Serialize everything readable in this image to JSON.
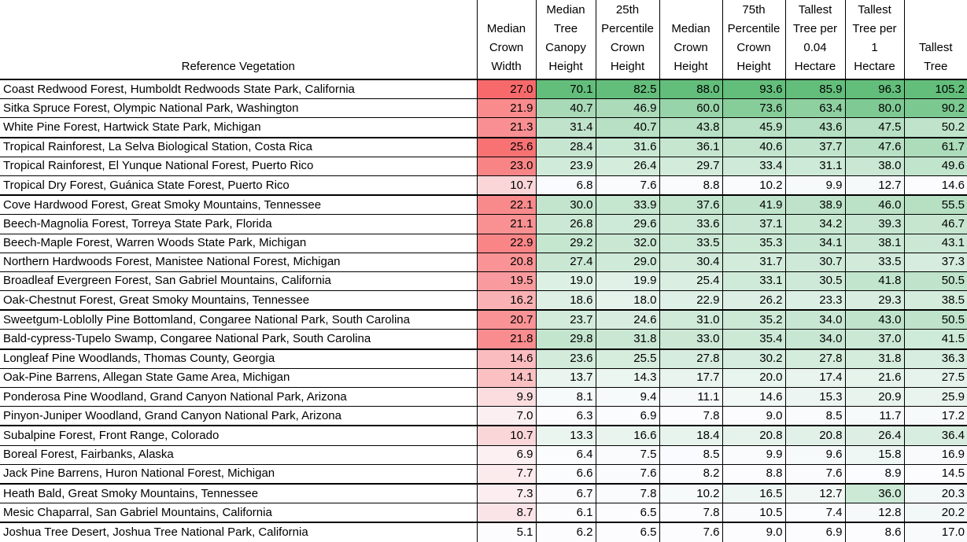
{
  "headers": [
    [
      "Reference Vegetation"
    ],
    [
      "Median",
      "Crown",
      "Width"
    ],
    [
      "Median",
      "Tree",
      "Canopy",
      "Height"
    ],
    [
      "25th",
      "Percentile",
      "Crown",
      "Height"
    ],
    [
      "Median",
      "Crown",
      "Height"
    ],
    [
      "75th",
      "Percentile",
      "Crown",
      "Height"
    ],
    [
      "Tallest",
      "Tree per",
      "0.04",
      "Hectare"
    ],
    [
      "Tallest",
      "Tree per",
      "1",
      "Hectare"
    ],
    [
      "Tallest",
      "Tree"
    ]
  ],
  "colors": {
    "red_scale_max": "#f8696b",
    "green_scale_max": "#63be7b",
    "scale_min": "#fcfcff"
  },
  "rows": [
    {
      "name": "Coast Redwood Forest, Humboldt Redwoods State Park, California",
      "values": [
        "27.0",
        "70.1",
        "82.5",
        "88.0",
        "93.6",
        "85.9",
        "96.3",
        "105.2"
      ]
    },
    {
      "name": "Sitka Spruce Forest, Olympic National Park, Washington",
      "values": [
        "21.9",
        "40.7",
        "46.9",
        "60.0",
        "73.6",
        "63.4",
        "80.0",
        "90.2"
      ]
    },
    {
      "name": "White Pine Forest, Hartwick State Park, Michigan",
      "values": [
        "21.3",
        "31.4",
        "40.7",
        "43.8",
        "45.9",
        "43.6",
        "47.5",
        "50.2"
      ]
    },
    {
      "name": "Tropical Rainforest, La Selva Biological Station, Costa Rica",
      "values": [
        "25.6",
        "28.4",
        "31.6",
        "36.1",
        "40.6",
        "37.7",
        "47.6",
        "61.7"
      ],
      "group_top": true
    },
    {
      "name": "Tropical Rainforest, El Yunque National Forest, Puerto Rico",
      "values": [
        "23.0",
        "23.9",
        "26.4",
        "29.7",
        "33.4",
        "31.1",
        "38.0",
        "49.6"
      ]
    },
    {
      "name": "Tropical Dry Forest, Guánica State Forest, Puerto Rico",
      "values": [
        "10.7",
        "6.8",
        "7.6",
        "8.8",
        "10.2",
        "9.9",
        "12.7",
        "14.6"
      ]
    },
    {
      "name": "Cove Hardwood Forest, Great Smoky Mountains, Tennessee",
      "values": [
        "22.1",
        "30.0",
        "33.9",
        "37.6",
        "41.9",
        "38.9",
        "46.0",
        "55.5"
      ],
      "group_top": true
    },
    {
      "name": "Beech-Magnolia Forest, Torreya State Park, Florida",
      "values": [
        "21.1",
        "26.8",
        "29.6",
        "33.6",
        "37.1",
        "34.2",
        "39.3",
        "46.7"
      ]
    },
    {
      "name": "Beech-Maple Forest, Warren Woods State Park, Michigan",
      "values": [
        "22.9",
        "29.2",
        "32.0",
        "33.5",
        "35.3",
        "34.1",
        "38.1",
        "43.1"
      ]
    },
    {
      "name": "Northern Hardwoods Forest, Manistee National Forest, Michigan",
      "values": [
        "20.8",
        "27.4",
        "29.0",
        "30.4",
        "31.7",
        "30.7",
        "33.5",
        "37.3"
      ]
    },
    {
      "name": "Broadleaf Evergreen Forest, San Gabriel Mountains, California",
      "values": [
        "19.5",
        "19.0",
        "19.9",
        "25.4",
        "33.1",
        "30.5",
        "41.8",
        "50.5"
      ]
    },
    {
      "name": "Oak-Chestnut Forest, Great Smoky Mountains, Tennessee",
      "values": [
        "16.2",
        "18.6",
        "18.0",
        "22.9",
        "26.2",
        "23.3",
        "29.3",
        "38.5"
      ]
    },
    {
      "name": "Sweetgum-Loblolly Pine Bottomland, Congaree National Park, South Carolina",
      "values": [
        "20.7",
        "23.7",
        "24.6",
        "31.0",
        "35.2",
        "34.0",
        "43.0",
        "50.5"
      ],
      "group_top": true
    },
    {
      "name": "Bald-cypress-Tupelo Swamp, Congaree National Park, South Carolina",
      "values": [
        "21.8",
        "29.8",
        "31.8",
        "33.0",
        "35.4",
        "34.0",
        "37.0",
        "41.5"
      ]
    },
    {
      "name": "Longleaf Pine Woodlands, Thomas County, Georgia",
      "values": [
        "14.6",
        "23.6",
        "25.5",
        "27.8",
        "30.2",
        "27.8",
        "31.8",
        "36.3"
      ],
      "group_top": true
    },
    {
      "name": "Oak-Pine Barrens, Allegan State Game Area, Michigan",
      "values": [
        "14.1",
        "13.7",
        "14.3",
        "17.7",
        "20.0",
        "17.4",
        "21.6",
        "27.5"
      ]
    },
    {
      "name": "Ponderosa Pine Woodland, Grand Canyon National Park, Arizona",
      "values": [
        "9.9",
        "8.1",
        "9.4",
        "11.1",
        "14.6",
        "15.3",
        "20.9",
        "25.9"
      ]
    },
    {
      "name": "Pinyon-Juniper Woodland, Grand Canyon National Park, Arizona",
      "values": [
        "7.0",
        "6.3",
        "6.9",
        "7.8",
        "9.0",
        "8.5",
        "11.7",
        "17.2"
      ]
    },
    {
      "name": "Subalpine Forest, Front Range, Colorado",
      "values": [
        "10.7",
        "13.3",
        "16.6",
        "18.4",
        "20.8",
        "20.8",
        "26.4",
        "36.4"
      ],
      "group_top": true
    },
    {
      "name": "Boreal Forest, Fairbanks, Alaska",
      "values": [
        "6.9",
        "6.4",
        "7.5",
        "8.5",
        "9.9",
        "9.6",
        "15.8",
        "16.9"
      ]
    },
    {
      "name": "Jack Pine Barrens, Huron National Forest, Michigan",
      "values": [
        "7.7",
        "6.6",
        "7.6",
        "8.2",
        "8.8",
        "7.6",
        "8.9",
        "14.5"
      ]
    },
    {
      "name": "Heath Bald, Great Smoky Mountains, Tennessee",
      "values": [
        "7.3",
        "6.7",
        "7.8",
        "10.2",
        "16.5",
        "12.7",
        "36.0",
        "20.3"
      ],
      "group_top": true
    },
    {
      "name": "Mesic Chaparral, San Gabriel Mountains, California",
      "values": [
        "8.7",
        "6.1",
        "6.5",
        "7.8",
        "10.5",
        "7.4",
        "12.8",
        "20.2"
      ]
    },
    {
      "name": "Joshua Tree Desert, Joshua Tree National Park, California",
      "values": [
        "5.1",
        "6.2",
        "6.5",
        "7.6",
        "9.0",
        "6.9",
        "8.6",
        "17.0"
      ],
      "group_top": true
    }
  ]
}
